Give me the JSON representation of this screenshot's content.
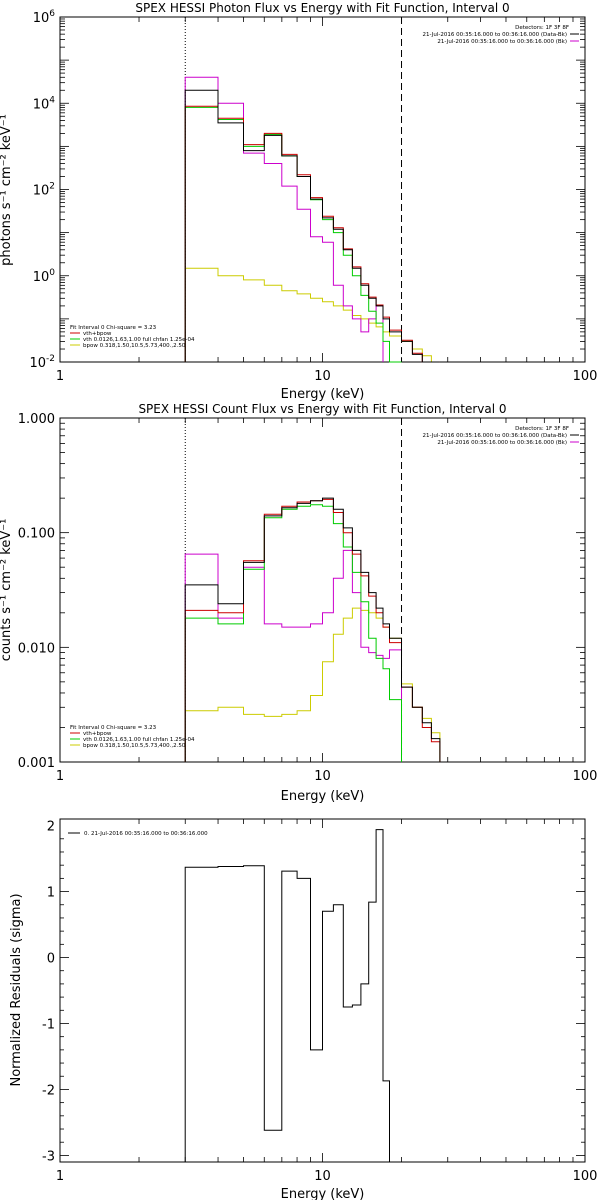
{
  "colors": {
    "data": "#000000",
    "total_model": "#cc0000",
    "vth": "#00cc00",
    "bpow": "#cccc00",
    "background": "#cc00cc"
  },
  "chart_data": [
    {
      "type": "line",
      "title": "SPEX HESSI Photon Flux vs Energy with Fit Function, Interval 0",
      "xlabel": "Energy (keV)",
      "ylabel": "photons s⁻¹ cm⁻² keV⁻¹",
      "xscale": "log",
      "yscale": "log",
      "xlim": [
        1,
        100
      ],
      "ylim": [
        0.01,
        1000000
      ],
      "x_ticks": [
        "1",
        "10",
        "100"
      ],
      "y_ticks": [
        {
          "v": 0.01,
          "base": "10",
          "exp": "-2"
        },
        {
          "v": 1,
          "base": "10",
          "exp": "0"
        },
        {
          "v": 100,
          "base": "10",
          "exp": "2"
        },
        {
          "v": 10000,
          "base": "10",
          "exp": "4"
        },
        {
          "v": 1000000,
          "base": "10",
          "exp": "6"
        }
      ],
      "vlines": [
        {
          "x": 3,
          "style": "dotted"
        },
        {
          "x": 20,
          "style": "dashed"
        }
      ],
      "legend_top": [
        "Detectors: 1F 3F 8F",
        "21-Jul-2016 00:35:16.000 to 00:36:16.000 (Data-Bk)",
        "21-Jul-2016 00:35:16.000 to 00:36:16.000 (Bk)"
      ],
      "legend_bottom": [
        "Fit Interval 0   Chi-square = 3.23",
        "vth+bpow",
        "vth 0.0126,1.63,1.00  full chfan 1.25e-04",
        "bpow 0.318,1.50,10.5,5.73,400.,2.50"
      ],
      "edges": [
        3,
        4,
        5,
        6,
        7,
        8,
        9,
        10,
        11,
        12,
        13,
        14,
        15,
        16,
        17,
        18,
        20,
        22,
        24,
        26,
        28
      ],
      "series": [
        {
          "key": "data",
          "values": [
            20000,
            3500,
            800,
            1800,
            600,
            200,
            60,
            22,
            12,
            4,
            1.5,
            0.6,
            0.3,
            0.2,
            0.1,
            0.05,
            0.03,
            0.015,
            0.008,
            0.004
          ]
        },
        {
          "key": "total_model",
          "values": [
            8500,
            4500,
            1100,
            2000,
            650,
            220,
            65,
            24,
            13,
            4.2,
            1.6,
            0.65,
            0.32,
            0.21,
            0.11,
            0.055,
            0.032,
            0.016,
            0.009,
            0.005
          ]
        },
        {
          "key": "vth",
          "values": [
            8000,
            4200,
            1000,
            1900,
            600,
            200,
            58,
            20,
            10,
            3,
            1,
            0.35,
            0.15,
            0.08,
            0.03,
            0.008,
            null,
            null,
            null,
            null
          ]
        },
        {
          "key": "bpow",
          "values": [
            1.5,
            1.0,
            0.8,
            0.6,
            0.45,
            0.38,
            0.3,
            0.25,
            0.2,
            0.16,
            0.12,
            0.1,
            0.08,
            0.065,
            0.05,
            0.04,
            0.03,
            0.02,
            0.014,
            0.01
          ]
        },
        {
          "key": "background",
          "values": [
            40000,
            10000,
            700,
            400,
            120,
            35,
            8,
            6,
            0.6,
            0.2,
            0.1,
            0.05,
            0.1,
            0.2,
            null,
            null,
            null,
            null,
            null,
            null
          ]
        }
      ]
    },
    {
      "type": "line",
      "title": "SPEX HESSI Count Flux vs Energy with Fit Function, Interval 0",
      "xlabel": "Energy (keV)",
      "ylabel": "counts s⁻¹ cm⁻² keV⁻¹",
      "xscale": "log",
      "yscale": "log",
      "xlim": [
        1,
        100
      ],
      "ylim": [
        0.001,
        1
      ],
      "x_ticks": [
        "1",
        "10",
        "100"
      ],
      "y_ticks": [
        {
          "v": 0.001,
          "label": "0.001"
        },
        {
          "v": 0.01,
          "label": "0.010"
        },
        {
          "v": 0.1,
          "label": "0.100"
        },
        {
          "v": 1,
          "label": "1.000"
        }
      ],
      "vlines": [
        {
          "x": 3,
          "style": "dotted"
        },
        {
          "x": 20,
          "style": "dashed"
        }
      ],
      "legend_top": [
        "Detectors: 1F 3F 8F",
        "21-Jul-2016 00:35:16.000 to 00:36:16.000 (Data-Bk)",
        "21-Jul-2016 00:35:16.000 to 00:36:16.000 (Bk)"
      ],
      "legend_bottom": [
        "Fit Interval 0   Chi-square = 3.23",
        "vth+bpow",
        "vth 0.0126,1.63,1.00  full chfan 1.25e-04",
        "bpow 0.318,1.50,10.5,5.73,400.,2.50"
      ],
      "edges": [
        3,
        4,
        5,
        6,
        7,
        8,
        9,
        10,
        11,
        12,
        13,
        14,
        15,
        16,
        17,
        18,
        20,
        22,
        24,
        26,
        28
      ],
      "series": [
        {
          "key": "data",
          "values": [
            0.035,
            0.024,
            0.055,
            0.14,
            0.165,
            0.18,
            0.19,
            0.2,
            0.16,
            0.11,
            0.07,
            0.045,
            0.03,
            0.022,
            0.016,
            0.012,
            0.0045,
            0.003,
            0.0022,
            0.0016
          ]
        },
        {
          "key": "total_model",
          "values": [
            0.021,
            0.02,
            0.057,
            0.145,
            0.17,
            0.185,
            0.19,
            0.195,
            0.15,
            0.1,
            0.065,
            0.042,
            0.028,
            0.02,
            0.015,
            0.011,
            0.0045,
            0.003,
            0.002,
            0.0015
          ]
        },
        {
          "key": "vth",
          "values": [
            0.018,
            0.016,
            0.048,
            0.135,
            0.16,
            0.17,
            0.175,
            0.17,
            0.12,
            0.075,
            0.045,
            0.025,
            0.012,
            0.008,
            0.0065,
            0.0035,
            null,
            null,
            null,
            null
          ]
        },
        {
          "key": "bpow",
          "values": [
            0.0028,
            0.003,
            0.0026,
            0.0025,
            0.0026,
            0.0028,
            0.0038,
            0.0075,
            0.013,
            0.018,
            0.022,
            0.021,
            0.02,
            0.018,
            0.015,
            0.012,
            0.0048,
            0.003,
            0.0024,
            0.0018
          ]
        },
        {
          "key": "background",
          "values": [
            0.065,
            0.018,
            0.05,
            0.016,
            0.015,
            0.015,
            0.016,
            0.02,
            0.04,
            0.07,
            0.03,
            0.01,
            0.009,
            0.0085,
            0.008,
            0.0095,
            null,
            null,
            null,
            null
          ]
        }
      ]
    },
    {
      "type": "line",
      "title": "",
      "xlabel": "Energy (keV)",
      "ylabel": "Normalized Residuals (sigma)",
      "xscale": "log",
      "yscale": "linear",
      "xlim": [
        1,
        100
      ],
      "ylim": [
        -3.1,
        2.1
      ],
      "x_ticks": [
        "1",
        "10",
        "100"
      ],
      "y_ticks": [
        {
          "v": -3,
          "label": "-3"
        },
        {
          "v": -2,
          "label": "-2"
        },
        {
          "v": -1,
          "label": "-1"
        },
        {
          "v": 0,
          "label": "0"
        },
        {
          "v": 1,
          "label": "1"
        },
        {
          "v": 2,
          "label": "2"
        }
      ],
      "legend_top": [
        "0. 21-Jul-2016 00:35:16.000 to 00:36:16.000"
      ],
      "edges": [
        3,
        4,
        5,
        6,
        7,
        8,
        9,
        10,
        11,
        12,
        13,
        14,
        15,
        16,
        17,
        18,
        20
      ],
      "series": [
        {
          "key": "data",
          "values": [
            1.37,
            1.38,
            1.39,
            -2.62,
            1.31,
            1.2,
            -1.4,
            0.7,
            0.8,
            -0.75,
            -0.72,
            -0.4,
            0.84,
            1.94,
            -1.87,
            -3.1
          ]
        }
      ]
    }
  ]
}
